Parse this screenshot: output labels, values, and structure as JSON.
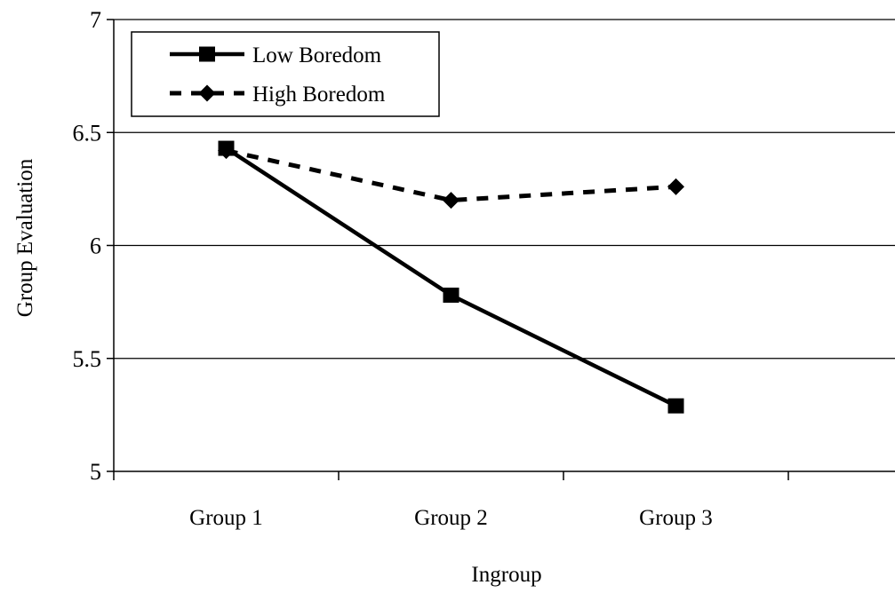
{
  "chart_data": {
    "type": "line",
    "categories": [
      "Group 1",
      "Group 2",
      "Group 3"
    ],
    "series": [
      {
        "name": "Low Boredom",
        "values": [
          6.43,
          5.78,
          5.29
        ],
        "marker": "square",
        "line_style": "solid",
        "color": "#000000"
      },
      {
        "name": "High Boredom",
        "values": [
          6.42,
          6.2,
          6.26
        ],
        "marker": "diamond",
        "line_style": "dashed",
        "color": "#000000"
      }
    ],
    "xlabel": "Ingroup",
    "ylabel": "Group Evaluation",
    "ylim": [
      5,
      7
    ],
    "yticks": [
      "5",
      "5.5",
      "6",
      "6.5",
      "7"
    ],
    "grid": true,
    "legend_position": "top-left"
  }
}
